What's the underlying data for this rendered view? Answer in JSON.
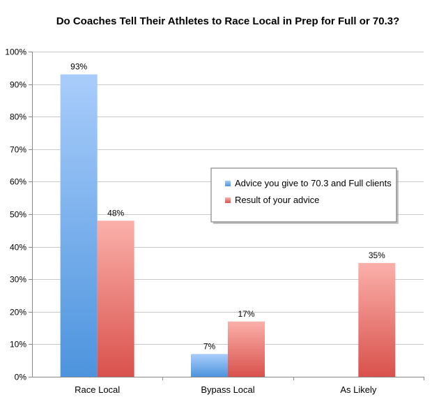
{
  "chart_data": {
    "type": "bar",
    "title": "Do Coaches Tell Their Athletes to Race Local in Prep for Full or 70.3?",
    "xlabel": "",
    "ylabel": "",
    "categories": [
      "Race Local",
      "Bypass Local",
      "As Likely"
    ],
    "series": [
      {
        "name": "Advice you give  to 70.3 and Full clients",
        "values": [
          93,
          7,
          null
        ],
        "labels": [
          "93%",
          "7%",
          ""
        ],
        "color_top": "#a9cdfb",
        "color_bottom": "#4d94de"
      },
      {
        "name": "Result of your advice",
        "values": [
          48,
          17,
          35
        ],
        "labels": [
          "48%",
          "17%",
          "35%"
        ],
        "color_top": "#fbb0aa",
        "color_bottom": "#d9514c"
      }
    ],
    "ylim": [
      0,
      100
    ],
    "yticks": [
      0,
      10,
      20,
      30,
      40,
      50,
      60,
      70,
      80,
      90,
      100
    ],
    "ytick_labels": [
      "0%",
      "10%",
      "20%",
      "30%",
      "40%",
      "50%",
      "60%",
      "70%",
      "80%",
      "90%",
      "100%"
    ],
    "grid": true,
    "legend_position": "right-middle"
  }
}
